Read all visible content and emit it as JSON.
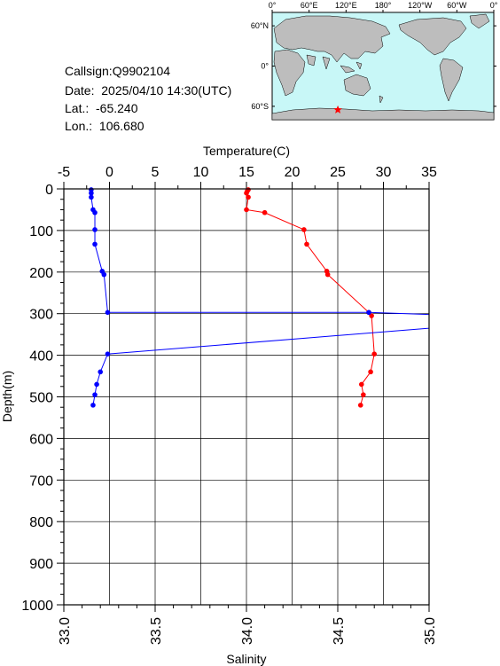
{
  "station": {
    "callsign": "Callsign:Q9902104",
    "date": "Date:  2025/04/10 14:30(UTC)",
    "lat": "Lat.:  -65.240",
    "lon": "Lon.:  106.680"
  },
  "map": {
    "top_labels": [
      "0°",
      "60°E",
      "120°E",
      "180°",
      "120°W",
      "60°W",
      "0°"
    ],
    "side_labels": [
      "60°N",
      "0°",
      "60°S"
    ],
    "ocean_color": "#c8f7f7",
    "land_color": "#bdbdbd",
    "marker": "star-icon",
    "marker_color": "#ff0000",
    "marker_lon": 106.68,
    "marker_lat": -65.24
  },
  "chart_data": {
    "type": "line",
    "ylabel": "Depth(m)",
    "ylim": [
      0,
      1000
    ],
    "yticks": [
      "0",
      "100",
      "200",
      "300",
      "400",
      "500",
      "600",
      "700",
      "800",
      "900",
      "1000"
    ],
    "x_top_label": "Temperature(C)",
    "x_top_lim": [
      -5,
      35
    ],
    "x_top_ticks": [
      "-5",
      "0",
      "5",
      "10",
      "15",
      "20",
      "25",
      "30",
      "35"
    ],
    "x_bottom_label": "Salinity",
    "x_bottom_lim": [
      33.0,
      35.0
    ],
    "x_bottom_ticks": [
      "33.0",
      "33.5",
      "34.0",
      "34.5",
      "35.0"
    ],
    "grid": true,
    "series": [
      {
        "axis": "temperature",
        "color": "#ff0000",
        "points": [
          [
            15.2,
            2
          ],
          [
            15.1,
            5
          ],
          [
            15.0,
            10
          ],
          [
            15.2,
            20
          ],
          [
            15.0,
            50
          ],
          [
            17.0,
            57
          ],
          [
            21.3,
            98
          ],
          [
            21.6,
            133
          ],
          [
            23.8,
            198
          ],
          [
            23.9,
            206
          ],
          [
            28.4,
            297
          ],
          [
            28.7,
            305
          ],
          [
            29.0,
            397
          ],
          [
            28.6,
            440
          ],
          [
            27.6,
            470
          ],
          [
            27.8,
            495
          ],
          [
            27.5,
            520
          ]
        ]
      },
      {
        "axis": "salinity",
        "color": "#0000ff",
        "points": [
          [
            33.15,
            2
          ],
          [
            33.15,
            10
          ],
          [
            33.15,
            20
          ],
          [
            33.16,
            50
          ],
          [
            33.17,
            57
          ],
          [
            33.17,
            98
          ],
          [
            33.17,
            133
          ],
          [
            33.21,
            198
          ],
          [
            33.22,
            206
          ],
          [
            33.24,
            297
          ],
          [
            34.67,
            297
          ],
          [
            35.0,
            302
          ],
          [
            35.0,
            335
          ],
          [
            33.24,
            397
          ],
          [
            33.2,
            440
          ],
          [
            33.18,
            470
          ],
          [
            33.17,
            495
          ],
          [
            33.16,
            520
          ]
        ]
      }
    ]
  }
}
